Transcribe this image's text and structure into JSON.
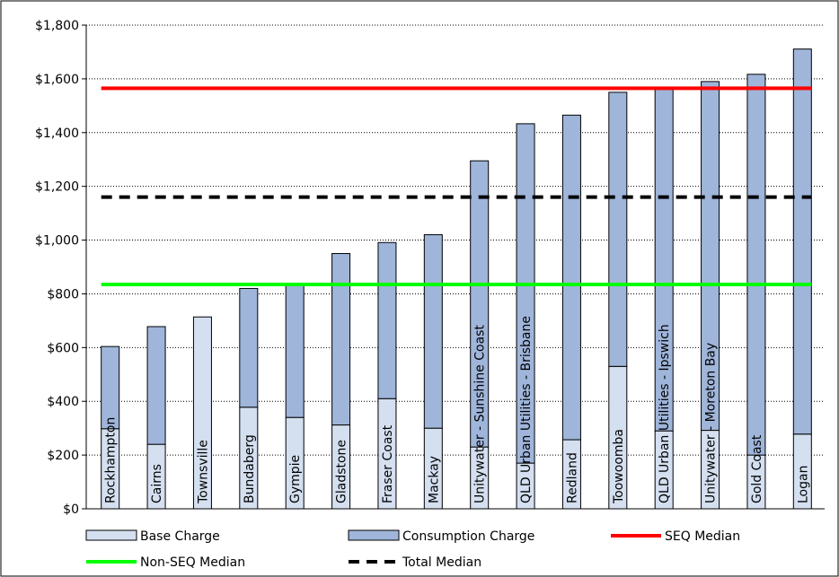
{
  "chart_data": {
    "type": "bar",
    "stacked": true,
    "categories": [
      "Rockhampton",
      "Cairns",
      "Townsville",
      "Bundaberg",
      "Gympie",
      "Gladstone",
      "Fraser Coast",
      "Mackay",
      "Unitywater - Sunshine Coast",
      "QLD Urban Utilities - Brisbane",
      "Redland",
      "Toowoomba",
      "QLD Urban Utilities - Ipswich",
      "Unitywater - Moreton Bay",
      "Gold Coast",
      "Logan"
    ],
    "series": [
      {
        "name": "Base Charge",
        "color": "#d4dff0",
        "values": [
          298,
          240,
          714,
          378,
          340,
          312,
          410,
          300,
          230,
          170,
          257,
          530,
          290,
          292,
          200,
          278
        ]
      },
      {
        "name": "Consumption Charge",
        "color": "#9fb5da",
        "values": [
          306,
          438,
          0,
          442,
          496,
          638,
          581,
          720,
          1065,
          1263,
          1208,
          1020,
          1275,
          1298,
          1417,
          1433
        ]
      }
    ],
    "lines": [
      {
        "name": "SEQ Median",
        "value": 1565,
        "color": "#ff0000",
        "style": "solid"
      },
      {
        "name": "Non-SEQ Median",
        "value": 835,
        "color": "#00ff00",
        "style": "solid"
      },
      {
        "name": "Total Median",
        "value": 1160,
        "color": "#000000",
        "style": "dashed"
      }
    ],
    "ylim": [
      0,
      1800
    ],
    "yticks": [
      0,
      200,
      400,
      600,
      800,
      1000,
      1200,
      1400,
      1600,
      1800
    ],
    "ytick_labels": [
      "$0",
      "$200",
      "$400",
      "$600",
      "$800",
      "$1,000",
      "$1,200",
      "$1,400",
      "$1,600",
      "$1,800"
    ],
    "grid": "horizontal-dotted",
    "legend_position": "bottom",
    "title": "",
    "xlabel": "",
    "ylabel": ""
  }
}
